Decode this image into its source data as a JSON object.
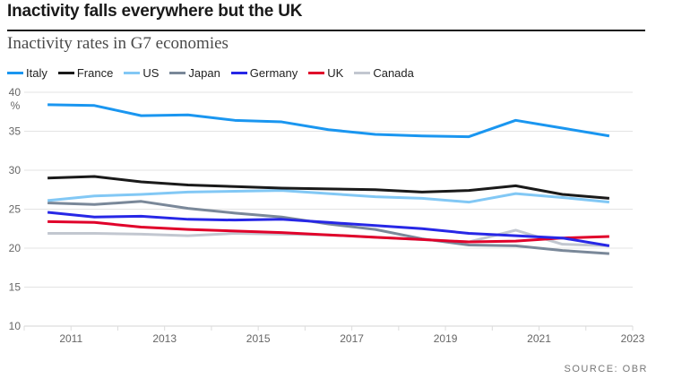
{
  "chart_data": {
    "type": "line",
    "title": "Inactivity falls everywhere but the UK",
    "subtitle": "Inactivity rates in G7 economies",
    "ylabel": "%",
    "xlabel": "",
    "ylim": [
      10,
      40
    ],
    "yticks": [
      10,
      15,
      20,
      25,
      30,
      35,
      40
    ],
    "xlim": [
      2010,
      2023
    ],
    "xticks": [
      2010,
      2011,
      2012,
      2013,
      2014,
      2015,
      2016,
      2017,
      2018,
      2019,
      2020,
      2021,
      2022,
      2023
    ],
    "xtick_labels": [
      "2011",
      "2013",
      "2015",
      "2017",
      "2019",
      "2021",
      "2023"
    ],
    "xtick_label_values": [
      2011,
      2013,
      2015,
      2017,
      2019,
      2021,
      2023
    ],
    "grid": true,
    "legend_position": "top-left",
    "x": [
      2010.5,
      2011.5,
      2012.5,
      2013.5,
      2014.5,
      2015.5,
      2016.5,
      2017.5,
      2018.5,
      2019.5,
      2020.5,
      2021.5,
      2022.5
    ],
    "series": [
      {
        "name": "Italy",
        "color": "#1a96f0",
        "values": [
          38.4,
          38.3,
          37.0,
          37.1,
          36.4,
          36.2,
          35.2,
          34.6,
          34.4,
          34.3,
          36.4,
          35.4,
          34.4
        ]
      },
      {
        "name": "France",
        "color": "#1a1a1a",
        "values": [
          29.0,
          29.2,
          28.5,
          28.1,
          27.9,
          27.7,
          27.6,
          27.5,
          27.2,
          27.4,
          28.0,
          26.9,
          26.4
        ]
      },
      {
        "name": "US",
        "color": "#82c8f5",
        "values": [
          26.1,
          26.7,
          26.9,
          27.2,
          27.3,
          27.4,
          27.0,
          26.6,
          26.4,
          25.9,
          27.0,
          26.5,
          25.9
        ]
      },
      {
        "name": "Japan",
        "color": "#7a8899",
        "values": [
          25.8,
          25.6,
          26.0,
          25.1,
          24.5,
          24.0,
          23.1,
          22.4,
          21.2,
          20.4,
          20.3,
          19.7,
          19.3
        ]
      },
      {
        "name": "Germany",
        "color": "#2727e6",
        "values": [
          24.6,
          24.0,
          24.1,
          23.7,
          23.6,
          23.7,
          23.3,
          22.9,
          22.5,
          21.9,
          21.6,
          21.3,
          20.3
        ]
      },
      {
        "name": "UK",
        "color": "#e0002a",
        "values": [
          23.4,
          23.3,
          22.7,
          22.4,
          22.2,
          22.0,
          21.7,
          21.4,
          21.1,
          20.8,
          20.9,
          21.3,
          21.5
        ]
      },
      {
        "name": "Canada",
        "color": "#c2c7d0",
        "values": [
          21.9,
          21.9,
          21.8,
          21.6,
          21.9,
          21.8,
          21.7,
          21.4,
          21.1,
          20.8,
          22.3,
          20.5,
          20.3
        ]
      }
    ],
    "source": "SOURCE: OBR"
  }
}
